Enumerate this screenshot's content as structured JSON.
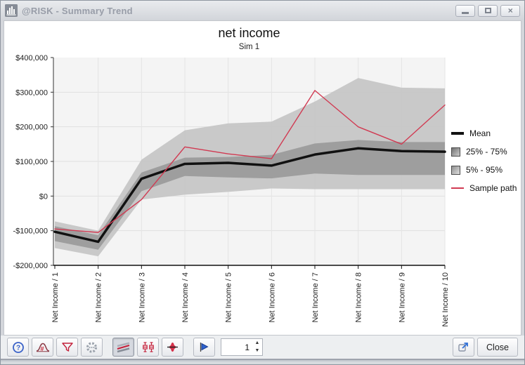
{
  "window": {
    "title": "@RISK - Summary Trend",
    "icon": "bar-chart-icon",
    "controls": [
      "minimize-icon",
      "maximize-icon",
      "close-icon"
    ]
  },
  "chart": {
    "title": "net income",
    "subtitle": "Sim 1"
  },
  "chart_data": {
    "type": "line",
    "title": "net income",
    "subtitle": "Sim 1",
    "x_categories": [
      "Net Income / 1",
      "Net Income / 2",
      "Net Income / 3",
      "Net Income / 4",
      "Net Income / 5",
      "Net Income / 6",
      "Net Income / 7",
      "Net Income / 8",
      "Net Income / 9",
      "Net Income / 10"
    ],
    "ylim": [
      -200000,
      400000
    ],
    "ytick_values": [
      400000,
      300000,
      200000,
      100000,
      0,
      -100000,
      -200000
    ],
    "ytick_labels": [
      "$400,000",
      "$300,000",
      "$200,000",
      "$100,000",
      "$0",
      "-$100,000",
      "-$200,000"
    ],
    "grid": true,
    "legend_position": "right",
    "plot_bg": "#f4f4f4",
    "bands": [
      {
        "name": "5% - 95%",
        "color": "#c6c6c6",
        "opacity": 0.95,
        "upper": [
          -73000,
          -100000,
          105000,
          190000,
          210000,
          215000,
          273000,
          341000,
          313000,
          311000
        ],
        "lower": [
          -150000,
          -174000,
          -10000,
          4000,
          12000,
          22000,
          20000,
          20000,
          20000,
          20000
        ]
      },
      {
        "name": "25% - 75%",
        "color": "#9e9e9e",
        "opacity": 1,
        "upper": [
          -87000,
          -113000,
          68000,
          111000,
          113000,
          119000,
          152000,
          162000,
          156000,
          156000
        ],
        "lower": [
          -130000,
          -155000,
          14000,
          58000,
          54000,
          51000,
          65000,
          61000,
          61000,
          61000
        ]
      }
    ],
    "series": [
      {
        "name": "Mean",
        "color": "#111111",
        "width": 3.5,
        "values": [
          -103000,
          -132000,
          50000,
          93000,
          96000,
          88000,
          120000,
          138000,
          130000,
          128000
        ]
      },
      {
        "name": "Sample path",
        "color": "#d13a52",
        "width": 1.4,
        "values": [
          -95000,
          -105000,
          -10000,
          142000,
          122000,
          108000,
          305000,
          200000,
          150000,
          263000
        ]
      }
    ]
  },
  "legend": {
    "items": [
      {
        "label": "Mean",
        "marker": "line-thick",
        "color": "#111111"
      },
      {
        "label": "25% - 75%",
        "marker": "box",
        "color": "#9e9e9e"
      },
      {
        "label": "5% - 95%",
        "marker": "box",
        "color": "#c6c6c6"
      },
      {
        "label": "Sample path",
        "marker": "line-thin",
        "color": "#d13a52"
      }
    ]
  },
  "toolbar": {
    "left_icons": [
      "help-icon",
      "distribution-fit-icon",
      "filter-icon",
      "settings-icon"
    ],
    "graph_type_icons": [
      "summary-trend-icon",
      "box-plot-icon",
      "distribution-band-icon"
    ],
    "selected_graph_type": "summary-trend-icon",
    "sim_value": "1",
    "close_label": "Close"
  }
}
